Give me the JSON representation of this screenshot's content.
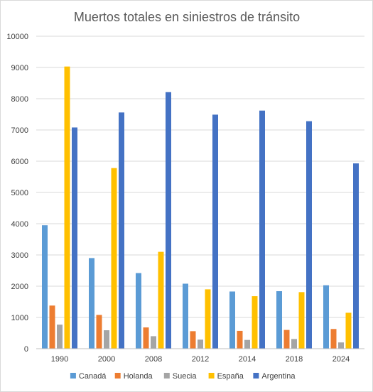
{
  "chart_data": {
    "type": "bar",
    "title": "Muertos totales en siniestros de tránsito",
    "xlabel": "",
    "ylabel": "",
    "categories": [
      "1990",
      "2000",
      "2008",
      "2012",
      "2014",
      "2018",
      "2024"
    ],
    "ylim": [
      0,
      10000
    ],
    "yticks": [
      0,
      1000,
      2000,
      3000,
      4000,
      5000,
      6000,
      7000,
      8000,
      9000,
      10000
    ],
    "grid": true,
    "legend_position": "bottom",
    "series": [
      {
        "name": "Canadá",
        "color": "#5B9BD5",
        "values": [
          3950,
          2900,
          2420,
          2080,
          1830,
          1840,
          2030
        ]
      },
      {
        "name": "Holanda",
        "color": "#ED7D31",
        "values": [
          1380,
          1080,
          680,
          560,
          570,
          600,
          630
        ]
      },
      {
        "name": "Suecia",
        "color": "#A5A5A5",
        "values": [
          770,
          590,
          400,
          290,
          280,
          310,
          200
        ]
      },
      {
        "name": "España",
        "color": "#FFC000",
        "values": [
          9030,
          5780,
          3100,
          1900,
          1680,
          1810,
          1150
        ]
      },
      {
        "name": "Argentina",
        "color": "#4472C4",
        "values": [
          7080,
          7560,
          8210,
          7490,
          7620,
          7280,
          5930
        ]
      }
    ]
  }
}
